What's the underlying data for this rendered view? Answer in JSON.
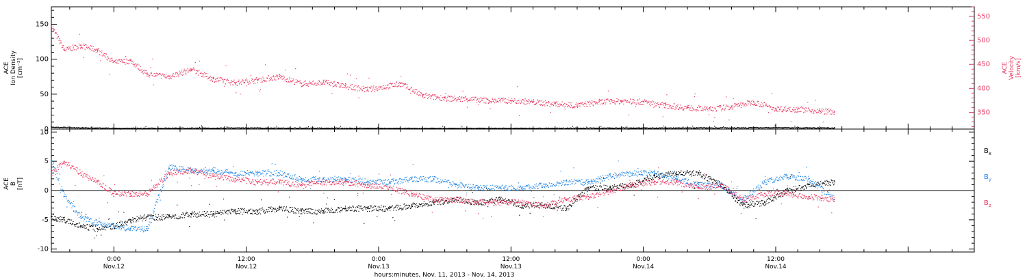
{
  "colors": {
    "black": "#000000",
    "pink": "#e8365f",
    "blue": "#1f86e6"
  },
  "time_axis": {
    "range": [
      "2013-11-11 18:20",
      "2013-11-15 06:00"
    ],
    "ticks": [
      {
        "time": "2013-11-12 00:00",
        "hour": "0:00",
        "day": "Nov.12"
      },
      {
        "time": "2013-11-12 12:00",
        "hour": "12:00",
        "day": "Nov.12"
      },
      {
        "time": "2013-11-13 00:00",
        "hour": "0:00",
        "day": "Nov.13"
      },
      {
        "time": "2013-11-13 12:00",
        "hour": "12:00",
        "day": "Nov.13"
      },
      {
        "time": "2013-11-14 00:00",
        "hour": "0:00",
        "day": "Nov.14"
      },
      {
        "time": "2013-11-14 12:00",
        "hour": "12:00",
        "day": "Nov.14"
      }
    ],
    "xlabel": "hours:minutes, Nov. 11, 2013 - Nov. 14, 2013"
  },
  "chart_data": [
    {
      "type": "scatter",
      "panel": "top",
      "ylabel_left": [
        "ACE",
        "Ion Density",
        "[cm⁻³]"
      ],
      "ylabel_right": [
        "ACE",
        "Velocity",
        "[km/s]"
      ],
      "ylim_left": [
        0,
        175
      ],
      "ylim_right": [
        315,
        570
      ],
      "yticks_left": [
        "0",
        "50",
        "100",
        "150"
      ],
      "yticks_right": [
        "350",
        "400",
        "450",
        "500",
        "550"
      ],
      "series": [
        {
          "color": "pink",
          "axis": "right",
          "x": [
            "2013-11-11 18:20",
            "2013-11-11 19:30",
            "2013-11-11 21:00",
            "2013-11-11 22:30",
            "2013-11-12 00:00",
            "2013-11-12 01:30",
            "2013-11-12 03:00",
            "2013-11-12 05:00",
            "2013-11-12 07:00",
            "2013-11-12 09:00",
            "2013-11-12 11:00",
            "2013-11-12 13:00",
            "2013-11-12 15:00",
            "2013-11-12 17:00",
            "2013-11-12 19:00",
            "2013-11-12 21:00",
            "2013-11-12 23:00",
            "2013-11-13 02:00",
            "2013-11-13 04:00",
            "2013-11-13 06:00",
            "2013-11-13 08:00",
            "2013-11-13 10:00",
            "2013-11-13 12:00",
            "2013-11-13 14:00",
            "2013-11-13 16:00",
            "2013-11-13 18:00",
            "2013-11-13 20:00",
            "2013-11-13 22:00",
            "2013-11-14 00:00",
            "2013-11-14 02:00",
            "2013-11-14 04:00",
            "2013-11-14 06:00",
            "2013-11-14 08:00",
            "2013-11-14 10:00",
            "2013-11-14 12:00",
            "2013-11-14 14:00",
            "2013-11-14 16:00",
            "2013-11-14 17:20"
          ],
          "y": [
            530,
            480,
            490,
            480,
            455,
            458,
            430,
            425,
            440,
            420,
            412,
            418,
            425,
            410,
            413,
            405,
            398,
            410,
            385,
            380,
            378,
            375,
            375,
            372,
            368,
            365,
            372,
            374,
            372,
            365,
            360,
            357,
            362,
            372,
            358,
            357,
            353,
            352
          ]
        },
        {
          "color": "black",
          "axis": "left",
          "x": [
            "2013-11-11 18:20",
            "2013-11-12 00:00",
            "2013-11-12 12:00",
            "2013-11-13 00:00",
            "2013-11-13 12:00",
            "2013-11-14 00:00",
            "2013-11-14 12:00",
            "2013-11-14 17:20"
          ],
          "y": [
            3,
            1.5,
            2,
            1.5,
            1.5,
            2,
            2.5,
            2
          ]
        }
      ]
    },
    {
      "type": "scatter",
      "panel": "bottom",
      "ylabel_left": [
        "ACE",
        "B",
        "[nT]"
      ],
      "ylim": [
        -10.5,
        10.5
      ],
      "yticks": [
        "-10",
        "-5",
        "0",
        "5",
        "10"
      ],
      "legend": [
        {
          "label": "B",
          "sub": "x",
          "color": "black"
        },
        {
          "label": "B",
          "sub": "y",
          "color": "blue"
        },
        {
          "label": "B",
          "sub": "z",
          "color": "pink"
        }
      ],
      "legend_position": "right",
      "series": [
        {
          "color": "black",
          "x": [
            "2013-11-11 18:20",
            "2013-11-11 19:30",
            "2013-11-11 21:00",
            "2013-11-11 22:30",
            "2013-11-12 00:00",
            "2013-11-12 01:30",
            "2013-11-12 03:00",
            "2013-11-12 05:00",
            "2013-11-12 07:00",
            "2013-11-12 09:00",
            "2013-11-12 11:00",
            "2013-11-12 13:00",
            "2013-11-12 15:00",
            "2013-11-12 17:00",
            "2013-11-12 19:00",
            "2013-11-12 21:00",
            "2013-11-12 23:00",
            "2013-11-13 01:00",
            "2013-11-13 03:00",
            "2013-11-13 05:00",
            "2013-11-13 07:00",
            "2013-11-13 09:00",
            "2013-11-13 11:00",
            "2013-11-13 13:00",
            "2013-11-13 15:00",
            "2013-11-13 17:00",
            "2013-11-13 19:00",
            "2013-11-13 21:00",
            "2013-11-13 23:00",
            "2013-11-14 01:00",
            "2013-11-14 03:00",
            "2013-11-14 05:00",
            "2013-11-14 07:00",
            "2013-11-14 09:00",
            "2013-11-14 11:00",
            "2013-11-14 13:00",
            "2013-11-14 15:00",
            "2013-11-14 17:20"
          ],
          "y": [
            -4.5,
            -5,
            -6,
            -6.5,
            -6,
            -5,
            -4.5,
            -4.5,
            -4,
            -4,
            -3.5,
            -3.5,
            -3,
            -3.5,
            -3.5,
            -3,
            -3,
            -3,
            -2.5,
            -2,
            -1.5,
            -2,
            -1.5,
            -2.5,
            -2.5,
            -3,
            0.5,
            0.5,
            1,
            2.5,
            3,
            3,
            1,
            -2.5,
            -2,
            0,
            1,
            1.5
          ]
        },
        {
          "color": "blue",
          "x": [
            "2013-11-11 18:20",
            "2013-11-11 19:30",
            "2013-11-11 21:00",
            "2013-11-11 22:30",
            "2013-11-12 00:00",
            "2013-11-12 01:30",
            "2013-11-12 03:00",
            "2013-11-12 05:00",
            "2013-11-12 07:00",
            "2013-11-12 09:00",
            "2013-11-12 11:00",
            "2013-11-12 13:00",
            "2013-11-12 15:00",
            "2013-11-12 17:00",
            "2013-11-12 19:00",
            "2013-11-12 21:00",
            "2013-11-12 23:00",
            "2013-11-13 01:00",
            "2013-11-13 03:00",
            "2013-11-13 05:00",
            "2013-11-13 07:00",
            "2013-11-13 09:00",
            "2013-11-13 11:00",
            "2013-11-13 13:00",
            "2013-11-13 15:00",
            "2013-11-13 17:00",
            "2013-11-13 19:00",
            "2013-11-13 21:00",
            "2013-11-13 23:00",
            "2013-11-14 01:00",
            "2013-11-14 03:00",
            "2013-11-14 05:00",
            "2013-11-14 07:00",
            "2013-11-14 09:00",
            "2013-11-14 11:00",
            "2013-11-14 13:00",
            "2013-11-14 15:00",
            "2013-11-14 17:20"
          ],
          "y": [
            5,
            -1,
            -4.5,
            -5.5,
            -6,
            -6.5,
            -6.5,
            4,
            3.5,
            3.5,
            3,
            3,
            3,
            2,
            2,
            2,
            1.5,
            1.5,
            2,
            2,
            1,
            0.5,
            0.5,
            0.5,
            1,
            1.5,
            1.5,
            2.5,
            3,
            3,
            2,
            1,
            1,
            -1.5,
            1.5,
            2.5,
            2,
            -1.5
          ]
        },
        {
          "color": "pink",
          "x": [
            "2013-11-11 18:20",
            "2013-11-11 19:30",
            "2013-11-11 21:00",
            "2013-11-11 22:30",
            "2013-11-12 00:00",
            "2013-11-12 01:30",
            "2013-11-12 03:00",
            "2013-11-12 05:00",
            "2013-11-12 07:00",
            "2013-11-12 09:00",
            "2013-11-12 11:00",
            "2013-11-12 13:00",
            "2013-11-12 15:00",
            "2013-11-12 17:00",
            "2013-11-12 19:00",
            "2013-11-12 21:00",
            "2013-11-12 23:00",
            "2013-11-13 01:00",
            "2013-11-13 03:00",
            "2013-11-13 05:00",
            "2013-11-13 07:00",
            "2013-11-13 09:00",
            "2013-11-13 11:00",
            "2013-11-13 13:00",
            "2013-11-13 15:00",
            "2013-11-13 17:00",
            "2013-11-13 19:00",
            "2013-11-13 21:00",
            "2013-11-13 23:00",
            "2013-11-14 01:00",
            "2013-11-14 03:00",
            "2013-11-14 05:00",
            "2013-11-14 07:00",
            "2013-11-14 09:00",
            "2013-11-14 11:00",
            "2013-11-14 13:00",
            "2013-11-14 15:00",
            "2013-11-14 17:20"
          ],
          "y": [
            3,
            5,
            3,
            1.5,
            -0.5,
            -0.5,
            -0.5,
            3,
            3.5,
            2.5,
            2,
            1.5,
            1.5,
            1,
            1.5,
            1.5,
            1,
            0.5,
            -0.5,
            -1.5,
            -1.5,
            -2,
            -2,
            -2,
            -2.5,
            -1.5,
            -1,
            0,
            1,
            1.5,
            1.5,
            0.5,
            1,
            -1.5,
            -0.5,
            -0.5,
            -1,
            -1.5
          ]
        }
      ]
    }
  ]
}
